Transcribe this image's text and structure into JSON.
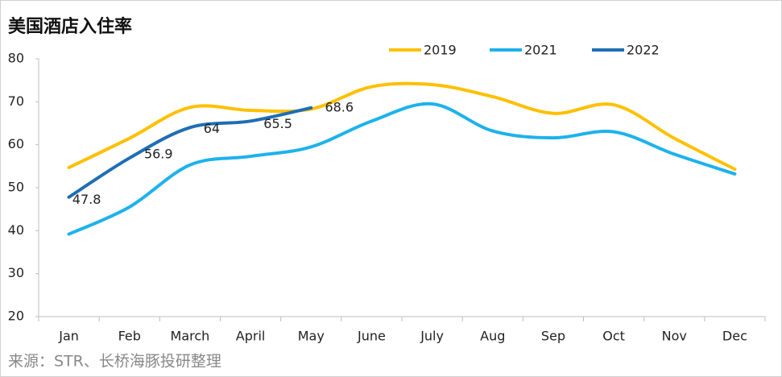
{
  "chart_data": {
    "type": "line",
    "title": "美国酒店入住率",
    "source": "来源：STR、长桥海豚投研整理",
    "categories": [
      "Jan",
      "Feb",
      "March",
      "April",
      "May",
      "June",
      "July",
      "Aug",
      "Sep",
      "Oct",
      "Nov",
      "Dec"
    ],
    "series": [
      {
        "name": "2019",
        "color": "#FFC000",
        "values": [
          54.7,
          61.5,
          68.7,
          68.0,
          68.3,
          73.5,
          74.0,
          71.2,
          67.3,
          69.3,
          61.5,
          54.3
        ]
      },
      {
        "name": "2021",
        "color": "#1DB2EC",
        "values": [
          39.2,
          45.5,
          55.3,
          57.3,
          59.5,
          65.5,
          69.5,
          63.2,
          61.6,
          63.0,
          57.8,
          53.2
        ]
      },
      {
        "name": "2022",
        "color": "#1F6EB4",
        "values": [
          47.8,
          56.9,
          64,
          65.5,
          68.6,
          null,
          null,
          null,
          null,
          null,
          null,
          null
        ],
        "data_labels": true
      }
    ],
    "ylim": [
      20,
      80
    ],
    "yticks": [
      20,
      30,
      40,
      50,
      60,
      70,
      80
    ]
  }
}
